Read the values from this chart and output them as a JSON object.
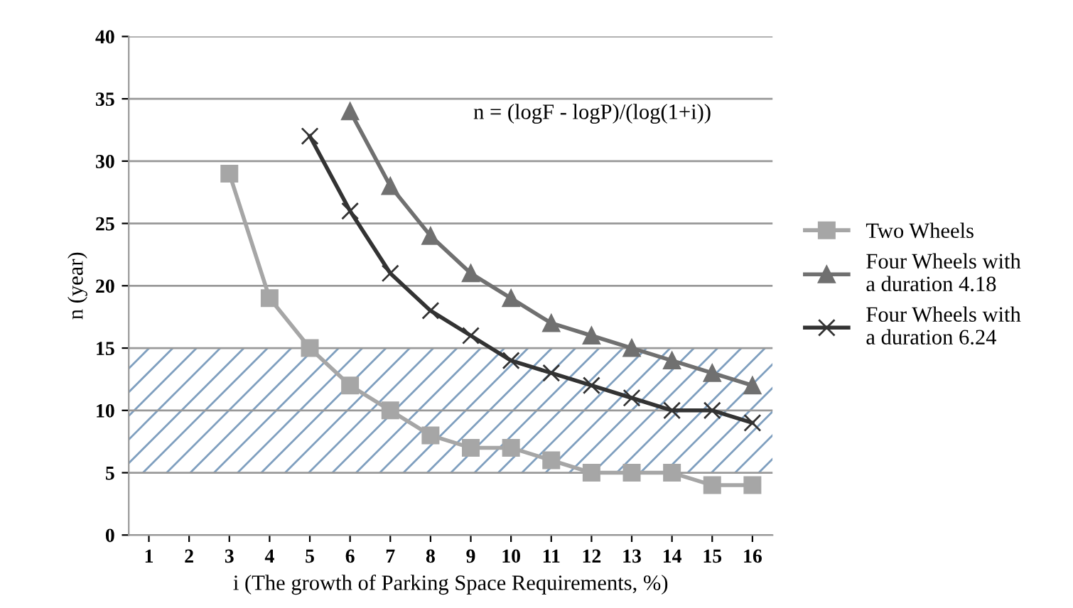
{
  "chart_data": {
    "type": "line",
    "xlabel": "i (The growth of Parking Space Requirements, %)",
    "ylabel": "n (year)",
    "categories": [
      "1",
      "2",
      "3",
      "4",
      "5",
      "6",
      "7",
      "8",
      "9",
      "10",
      "11",
      "12",
      "13",
      "14",
      "15",
      "16"
    ],
    "series": [
      {
        "name": "Two Wheels",
        "color": "#a6a6a6",
        "marker": "square",
        "values": [
          null,
          null,
          29,
          19,
          15,
          12,
          10,
          8,
          7,
          7,
          6,
          5,
          5,
          5,
          4,
          4
        ]
      },
      {
        "name": "Four Wheels with\na duration 4.18",
        "color": "#707070",
        "marker": "triangle",
        "values": [
          null,
          null,
          null,
          null,
          null,
          34,
          28,
          24,
          21,
          19,
          17,
          16,
          15,
          14,
          13,
          12
        ]
      },
      {
        "name": "Four Wheels with\na duration 6.24",
        "color": "#333333",
        "marker": "cross",
        "values": [
          null,
          null,
          null,
          null,
          32,
          26,
          21,
          18,
          16,
          14,
          13,
          12,
          11,
          10,
          10,
          9
        ]
      }
    ],
    "ylim": [
      0,
      40
    ],
    "yticks": [
      0,
      5,
      10,
      15,
      20,
      25,
      30,
      35,
      40
    ],
    "grid": "y",
    "legend": "right",
    "line_style": "solid",
    "bands": [
      {
        "axis": "y",
        "from": 5,
        "to": 15,
        "color": "#7f9fbf"
      }
    ],
    "annotations": [
      "n = (logF - logP)/(log(1+i))"
    ]
  }
}
